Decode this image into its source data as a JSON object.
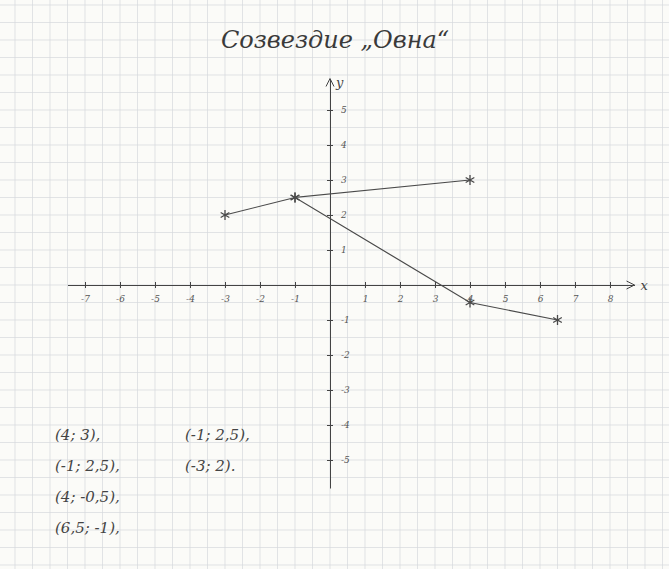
{
  "chart_data": {
    "type": "line",
    "title": "Созвездие „Овна“",
    "xlabel": "x",
    "ylabel": "y",
    "xlim": [
      -7.5,
      8.7
    ],
    "ylim": [
      -5.8,
      5.9
    ],
    "xticks": [
      -7,
      -6,
      -5,
      -4,
      -3,
      -2,
      -1,
      1,
      2,
      3,
      4,
      5,
      6,
      7,
      8
    ],
    "yticks": [
      -5,
      -4,
      -3,
      -2,
      -1,
      1,
      2,
      3,
      4,
      5
    ],
    "marker": "star",
    "series": [
      {
        "x": [
          4,
          -1,
          4,
          6.5
        ],
        "values": [
          3,
          2.5,
          -0.5,
          -1
        ],
        "color": "#4a4a4a"
      },
      {
        "x": [
          -1,
          -3
        ],
        "values": [
          2.5,
          2
        ],
        "color": "#4a4a4a"
      }
    ],
    "annotations": [
      "(4; 3),",
      "(-1; 2,5),",
      "(4; -0,5),",
      "(6,5; -1),",
      "(-1; 2,5),",
      "(-3; 2)."
    ]
  }
}
